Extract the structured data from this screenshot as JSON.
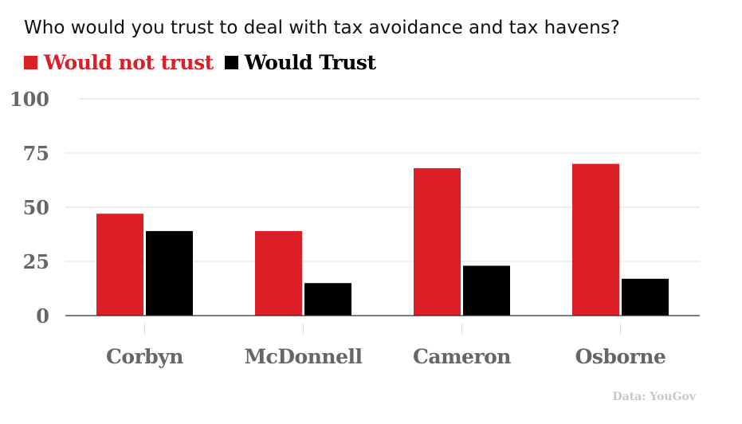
{
  "chart_data": {
    "type": "bar",
    "title": "Who would you trust to deal with tax avoidance and tax havens?",
    "categories": [
      "Corbyn",
      "McDonnell",
      "Cameron",
      "Osborne"
    ],
    "series": [
      {
        "name": "Would not trust",
        "color": "#dc1f26",
        "values": [
          47,
          39,
          68,
          70
        ]
      },
      {
        "name": "Would Trust",
        "color": "#000000",
        "values": [
          39,
          15,
          23,
          17
        ]
      }
    ],
    "xlabel": "",
    "ylabel": "",
    "ylim": [
      0,
      100
    ],
    "yticks": [
      0,
      25,
      50,
      75,
      100
    ],
    "grid": true,
    "legend_position": "top-left",
    "source": "Data: YouGov"
  }
}
